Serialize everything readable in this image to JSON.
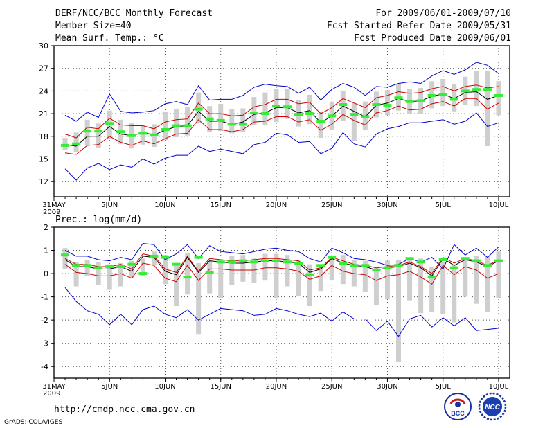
{
  "header": {
    "title": "DERF/NCC/BCC Monthly Forecast",
    "member_size": "Member Size=40",
    "variable1": "Mean Surf. Temp.: °C",
    "period": "For 2009/06/01-2009/07/10",
    "started": "Fcst Started Refer Date 2009/05/31",
    "produced": "Fcst Produced Date 2009/06/01"
  },
  "footer": {
    "url": "http://cmdp.ncc.cma.gov.cn",
    "grads": "GrADS: COLA/IGES",
    "logo1_text": "BCC",
    "logo2_text": "NCC"
  },
  "chart_data": [
    {
      "type": "line",
      "title": "Mean Surf. Temp.: °C",
      "ylim": [
        10,
        30
      ],
      "yticks": [
        12,
        15,
        18,
        21,
        24,
        27,
        30
      ],
      "x_tick_labels": [
        "31MAY",
        "5JUN",
        "10JUN",
        "15JUN",
        "20JUN",
        "25JUN",
        "30JUN",
        "5JUL",
        "10JUL"
      ],
      "x_tick_days": [
        0,
        5,
        10,
        15,
        20,
        25,
        30,
        35,
        40
      ],
      "x_year_label": "2009",
      "xlim": [
        0,
        41
      ],
      "days": [
        1,
        2,
        3,
        4,
        5,
        6,
        7,
        8,
        9,
        10,
        11,
        12,
        13,
        14,
        15,
        16,
        17,
        18,
        19,
        20,
        21,
        22,
        23,
        24,
        25,
        26,
        27,
        28,
        29,
        30,
        31,
        32,
        33,
        34,
        35,
        36,
        37,
        38,
        39,
        40
      ],
      "series": [
        {
          "name": "max",
          "color": "#0000cc",
          "values": [
            20.8,
            20.0,
            21.2,
            20.5,
            23.6,
            21.3,
            21.1,
            21.2,
            21.4,
            22.3,
            22.6,
            22.2,
            24.7,
            22.8,
            22.9,
            22.9,
            23.4,
            24.5,
            24.9,
            24.7,
            24.6,
            23.7,
            24.5,
            22.8,
            24.2,
            25.0,
            24.5,
            23.4,
            24.6,
            24.5,
            25.0,
            25.2,
            25.0,
            26.0,
            26.7,
            26.2,
            26.8,
            27.8,
            27.4,
            26.3
          ]
        },
        {
          "name": "upper",
          "color": "#cc0000",
          "values": [
            18.3,
            17.8,
            19.2,
            19.0,
            20.4,
            19.5,
            19.4,
            19.4,
            19.0,
            19.9,
            20.2,
            20.3,
            22.4,
            21.0,
            21.0,
            20.7,
            20.8,
            21.9,
            22.2,
            22.9,
            22.9,
            22.3,
            22.5,
            21.0,
            21.8,
            23.0,
            22.4,
            21.8,
            23.1,
            23.4,
            23.9,
            23.7,
            23.8,
            24.3,
            24.6,
            24.0,
            24.6,
            24.8,
            24.4,
            24.6
          ]
        },
        {
          "name": "mean",
          "color": "#000000",
          "values": [
            16.9,
            16.7,
            18.0,
            18.0,
            19.3,
            18.3,
            18.1,
            18.5,
            18.2,
            18.8,
            19.3,
            19.4,
            21.3,
            20.0,
            20.0,
            19.6,
            19.9,
            20.9,
            21.1,
            21.8,
            21.8,
            21.1,
            21.4,
            19.8,
            20.7,
            22.0,
            21.3,
            20.6,
            22.1,
            22.4,
            23.0,
            22.6,
            22.7,
            23.3,
            23.6,
            23.0,
            23.8,
            23.9,
            22.9,
            23.4
          ]
        },
        {
          "name": "lower",
          "color": "#cc0000",
          "values": [
            15.8,
            15.6,
            16.8,
            16.9,
            18.0,
            17.2,
            16.8,
            17.4,
            17.0,
            17.7,
            18.3,
            18.4,
            20.2,
            18.9,
            18.9,
            18.6,
            18.9,
            19.9,
            20.0,
            20.6,
            20.6,
            19.9,
            20.2,
            18.8,
            19.6,
            20.9,
            20.1,
            19.5,
            21.1,
            21.4,
            22.0,
            21.5,
            21.6,
            22.3,
            22.6,
            22.0,
            23.0,
            23.0,
            21.6,
            22.4
          ]
        },
        {
          "name": "min",
          "color": "#0000cc",
          "values": [
            13.7,
            12.2,
            13.8,
            14.4,
            13.6,
            14.2,
            13.9,
            15.0,
            14.3,
            15.1,
            15.5,
            15.5,
            16.7,
            16.0,
            16.3,
            16.0,
            15.7,
            16.9,
            17.2,
            18.4,
            18.2,
            17.2,
            17.3,
            15.7,
            16.4,
            18.5,
            17.0,
            16.6,
            18.3,
            19.0,
            19.3,
            19.8,
            19.8,
            20.0,
            20.2,
            19.6,
            20.0,
            21.1,
            19.3,
            19.8
          ]
        }
      ],
      "box_ranges": [
        [
          16.2,
          17.8
        ],
        [
          15.9,
          18.5
        ],
        [
          16.8,
          20.2
        ],
        [
          16.5,
          19.7
        ],
        [
          17.6,
          21.4
        ],
        [
          17.0,
          20.2
        ],
        [
          16.4,
          19.8
        ],
        [
          16.9,
          19.5
        ],
        [
          16.6,
          19.6
        ],
        [
          17.5,
          21.2
        ],
        [
          17.9,
          21.6
        ],
        [
          18.1,
          21.9
        ],
        [
          19.7,
          23.8
        ],
        [
          18.6,
          22.0
        ],
        [
          18.7,
          22.3
        ],
        [
          18.4,
          21.6
        ],
        [
          18.6,
          21.7
        ],
        [
          19.5,
          23.2
        ],
        [
          19.5,
          23.8
        ],
        [
          19.9,
          24.3
        ],
        [
          20.3,
          24.3
        ],
        [
          19.3,
          22.8
        ],
        [
          19.6,
          23.5
        ],
        [
          17.8,
          21.3
        ],
        [
          18.9,
          22.5
        ],
        [
          20.0,
          24.0
        ],
        [
          17.4,
          22.4
        ],
        [
          18.8,
          22.6
        ],
        [
          20.5,
          23.9
        ],
        [
          20.8,
          24.1
        ],
        [
          21.4,
          24.9
        ],
        [
          21.0,
          24.3
        ],
        [
          21.0,
          24.4
        ],
        [
          21.7,
          25.3
        ],
        [
          22.0,
          25.6
        ],
        [
          21.3,
          24.9
        ],
        [
          22.1,
          25.9
        ],
        [
          22.0,
          26.7
        ],
        [
          16.7,
          26.7
        ],
        [
          20.8,
          25.3
        ]
      ],
      "marker_values": [
        16.8,
        17.0,
        18.7,
        18.7,
        19.7,
        18.6,
        18.1,
        18.4,
        18.2,
        18.9,
        19.4,
        19.4,
        21.6,
        20.3,
        20.1,
        19.6,
        19.6,
        21.1,
        21.0,
        22.0,
        21.9,
        20.9,
        21.0,
        20.0,
        20.7,
        22.2,
        20.9,
        20.6,
        22.2,
        22.1,
        23.1,
        22.6,
        22.7,
        23.4,
        23.5,
        22.9,
        24.0,
        24.2,
        24.2,
        23.4
      ]
    },
    {
      "type": "line",
      "title": "Prec.: log(mm/d)",
      "ylim": [
        -4.5,
        2
      ],
      "yticks": [
        -4,
        -3,
        -2,
        -1,
        0,
        1,
        2
      ],
      "x_tick_labels": [
        "31MAY",
        "5JUN",
        "10JUN",
        "15JUN",
        "20JUN",
        "25JUN",
        "30JUN",
        "5JUL",
        "10JUL"
      ],
      "x_tick_days": [
        0,
        5,
        10,
        15,
        20,
        25,
        30,
        35,
        40
      ],
      "x_year_label": "2009",
      "xlim": [
        0,
        41
      ],
      "days": [
        1,
        2,
        3,
        4,
        5,
        6,
        7,
        8,
        9,
        10,
        11,
        12,
        13,
        14,
        15,
        16,
        17,
        18,
        19,
        20,
        21,
        22,
        23,
        24,
        25,
        26,
        27,
        28,
        29,
        30,
        31,
        32,
        33,
        34,
        35,
        36,
        37,
        38,
        39,
        40
      ],
      "series": [
        {
          "name": "max",
          "color": "#0000cc",
          "values": [
            1.0,
            0.75,
            0.75,
            0.6,
            0.55,
            0.7,
            0.6,
            1.3,
            1.25,
            0.6,
            0.85,
            1.25,
            0.65,
            1.2,
            0.95,
            0.9,
            0.85,
            0.95,
            1.05,
            1.1,
            1.0,
            0.95,
            0.65,
            0.5,
            1.1,
            0.9,
            0.65,
            0.6,
            0.5,
            0.35,
            0.4,
            0.65,
            0.5,
            0.7,
            0.2,
            1.25,
            0.8,
            1.1,
            0.7,
            1.15
          ]
        },
        {
          "name": "upper",
          "color": "#cc0000",
          "values": [
            0.65,
            0.4,
            0.4,
            0.3,
            0.3,
            0.4,
            0.2,
            0.85,
            0.75,
            0.2,
            0.05,
            0.75,
            0.1,
            0.65,
            0.6,
            0.55,
            0.55,
            0.6,
            0.65,
            0.65,
            0.6,
            0.55,
            0.15,
            0.25,
            0.7,
            0.55,
            0.4,
            0.35,
            0.25,
            0.3,
            0.35,
            0.5,
            0.3,
            0.0,
            0.7,
            0.45,
            0.65,
            0.55,
            0.35,
            0.6
          ]
        },
        {
          "name": "mean",
          "color": "#000000",
          "values": [
            0.6,
            0.3,
            0.3,
            0.2,
            0.2,
            0.3,
            0.1,
            0.75,
            0.7,
            0.1,
            -0.05,
            0.7,
            0.05,
            0.55,
            0.5,
            0.45,
            0.45,
            0.5,
            0.55,
            0.55,
            0.5,
            0.45,
            0.05,
            0.2,
            0.65,
            0.45,
            0.35,
            0.3,
            0.15,
            0.25,
            0.3,
            0.45,
            0.25,
            -0.1,
            0.65,
            0.35,
            0.6,
            0.5,
            0.3,
            0.55
          ]
        },
        {
          "name": "lower",
          "color": "#cc0000",
          "values": [
            0.4,
            0.05,
            0.0,
            -0.1,
            -0.1,
            0.0,
            -0.2,
            0.45,
            0.35,
            -0.2,
            -0.35,
            0.35,
            -0.3,
            0.2,
            0.2,
            0.15,
            0.15,
            0.15,
            0.25,
            0.25,
            0.2,
            0.1,
            -0.25,
            -0.1,
            0.35,
            0.1,
            0.0,
            -0.05,
            -0.3,
            -0.1,
            -0.05,
            0.1,
            -0.15,
            -0.45,
            0.35,
            -0.05,
            0.3,
            0.15,
            -0.2,
            0.0
          ]
        },
        {
          "name": "min",
          "color": "#0000cc",
          "values": [
            -0.6,
            -1.2,
            -1.6,
            -1.75,
            -2.2,
            -1.75,
            -2.2,
            -1.55,
            -1.4,
            -1.75,
            -1.9,
            -1.55,
            -2.0,
            -1.75,
            -1.5,
            -1.55,
            -1.6,
            -1.8,
            -1.75,
            -1.5,
            -1.6,
            -1.75,
            -1.85,
            -1.7,
            -2.05,
            -1.65,
            -1.95,
            -1.95,
            -2.45,
            -2.05,
            -2.7,
            -1.95,
            -1.8,
            -2.3,
            -1.9,
            -2.25,
            -1.9,
            -2.45,
            -2.4,
            -2.35
          ]
        }
      ],
      "box_ranges": [
        [
          0.2,
          1.1
        ],
        [
          -0.55,
          0.5
        ],
        [
          -0.1,
          0.6
        ],
        [
          -0.5,
          0.5
        ],
        [
          -0.7,
          0.4
        ],
        [
          -0.55,
          0.45
        ],
        [
          -0.2,
          0.55
        ],
        [
          -0.1,
          0.65
        ],
        [
          0.35,
          0.95
        ],
        [
          -0.45,
          0.8
        ],
        [
          -1.4,
          0.4
        ],
        [
          -0.9,
          0.9
        ],
        [
          -2.6,
          0.45
        ],
        [
          -0.85,
          0.6
        ],
        [
          -1.05,
          0.6
        ],
        [
          -0.5,
          0.75
        ],
        [
          -0.35,
          0.8
        ],
        [
          -0.4,
          0.65
        ],
        [
          -0.3,
          0.85
        ],
        [
          -1.05,
          0.85
        ],
        [
          -0.55,
          0.8
        ],
        [
          -0.95,
          0.6
        ],
        [
          -1.4,
          0.4
        ],
        [
          -0.75,
          0.3
        ],
        [
          -0.3,
          0.7
        ],
        [
          -0.45,
          0.8
        ],
        [
          -0.55,
          0.6
        ],
        [
          -0.8,
          0.55
        ],
        [
          -1.35,
          0.25
        ],
        [
          -1.1,
          0.55
        ],
        [
          -3.8,
          0.6
        ],
        [
          -1.15,
          0.7
        ],
        [
          -1.7,
          0.65
        ],
        [
          -1.65,
          0.3
        ],
        [
          -1.75,
          0.5
        ],
        [
          -2.1,
          0.4
        ],
        [
          -1.0,
          0.6
        ],
        [
          -1.3,
          0.75
        ],
        [
          -1.65,
          0.75
        ],
        [
          -1.05,
          0.95
        ]
      ],
      "marker_values": [
        0.8,
        0.35,
        0.35,
        0.25,
        0.3,
        0.3,
        0.4,
        0.0,
        0.75,
        0.7,
        0.4,
        -0.15,
        0.7,
        0.05,
        0.5,
        0.5,
        0.55,
        0.5,
        0.55,
        0.55,
        0.5,
        0.45,
        -0.05,
        0.35,
        0.7,
        0.45,
        0.35,
        0.35,
        0.15,
        0.25,
        0.35,
        0.65,
        0.5,
        -0.15,
        0.6,
        0.25,
        0.65,
        0.55,
        0.35,
        0.55
      ]
    }
  ]
}
